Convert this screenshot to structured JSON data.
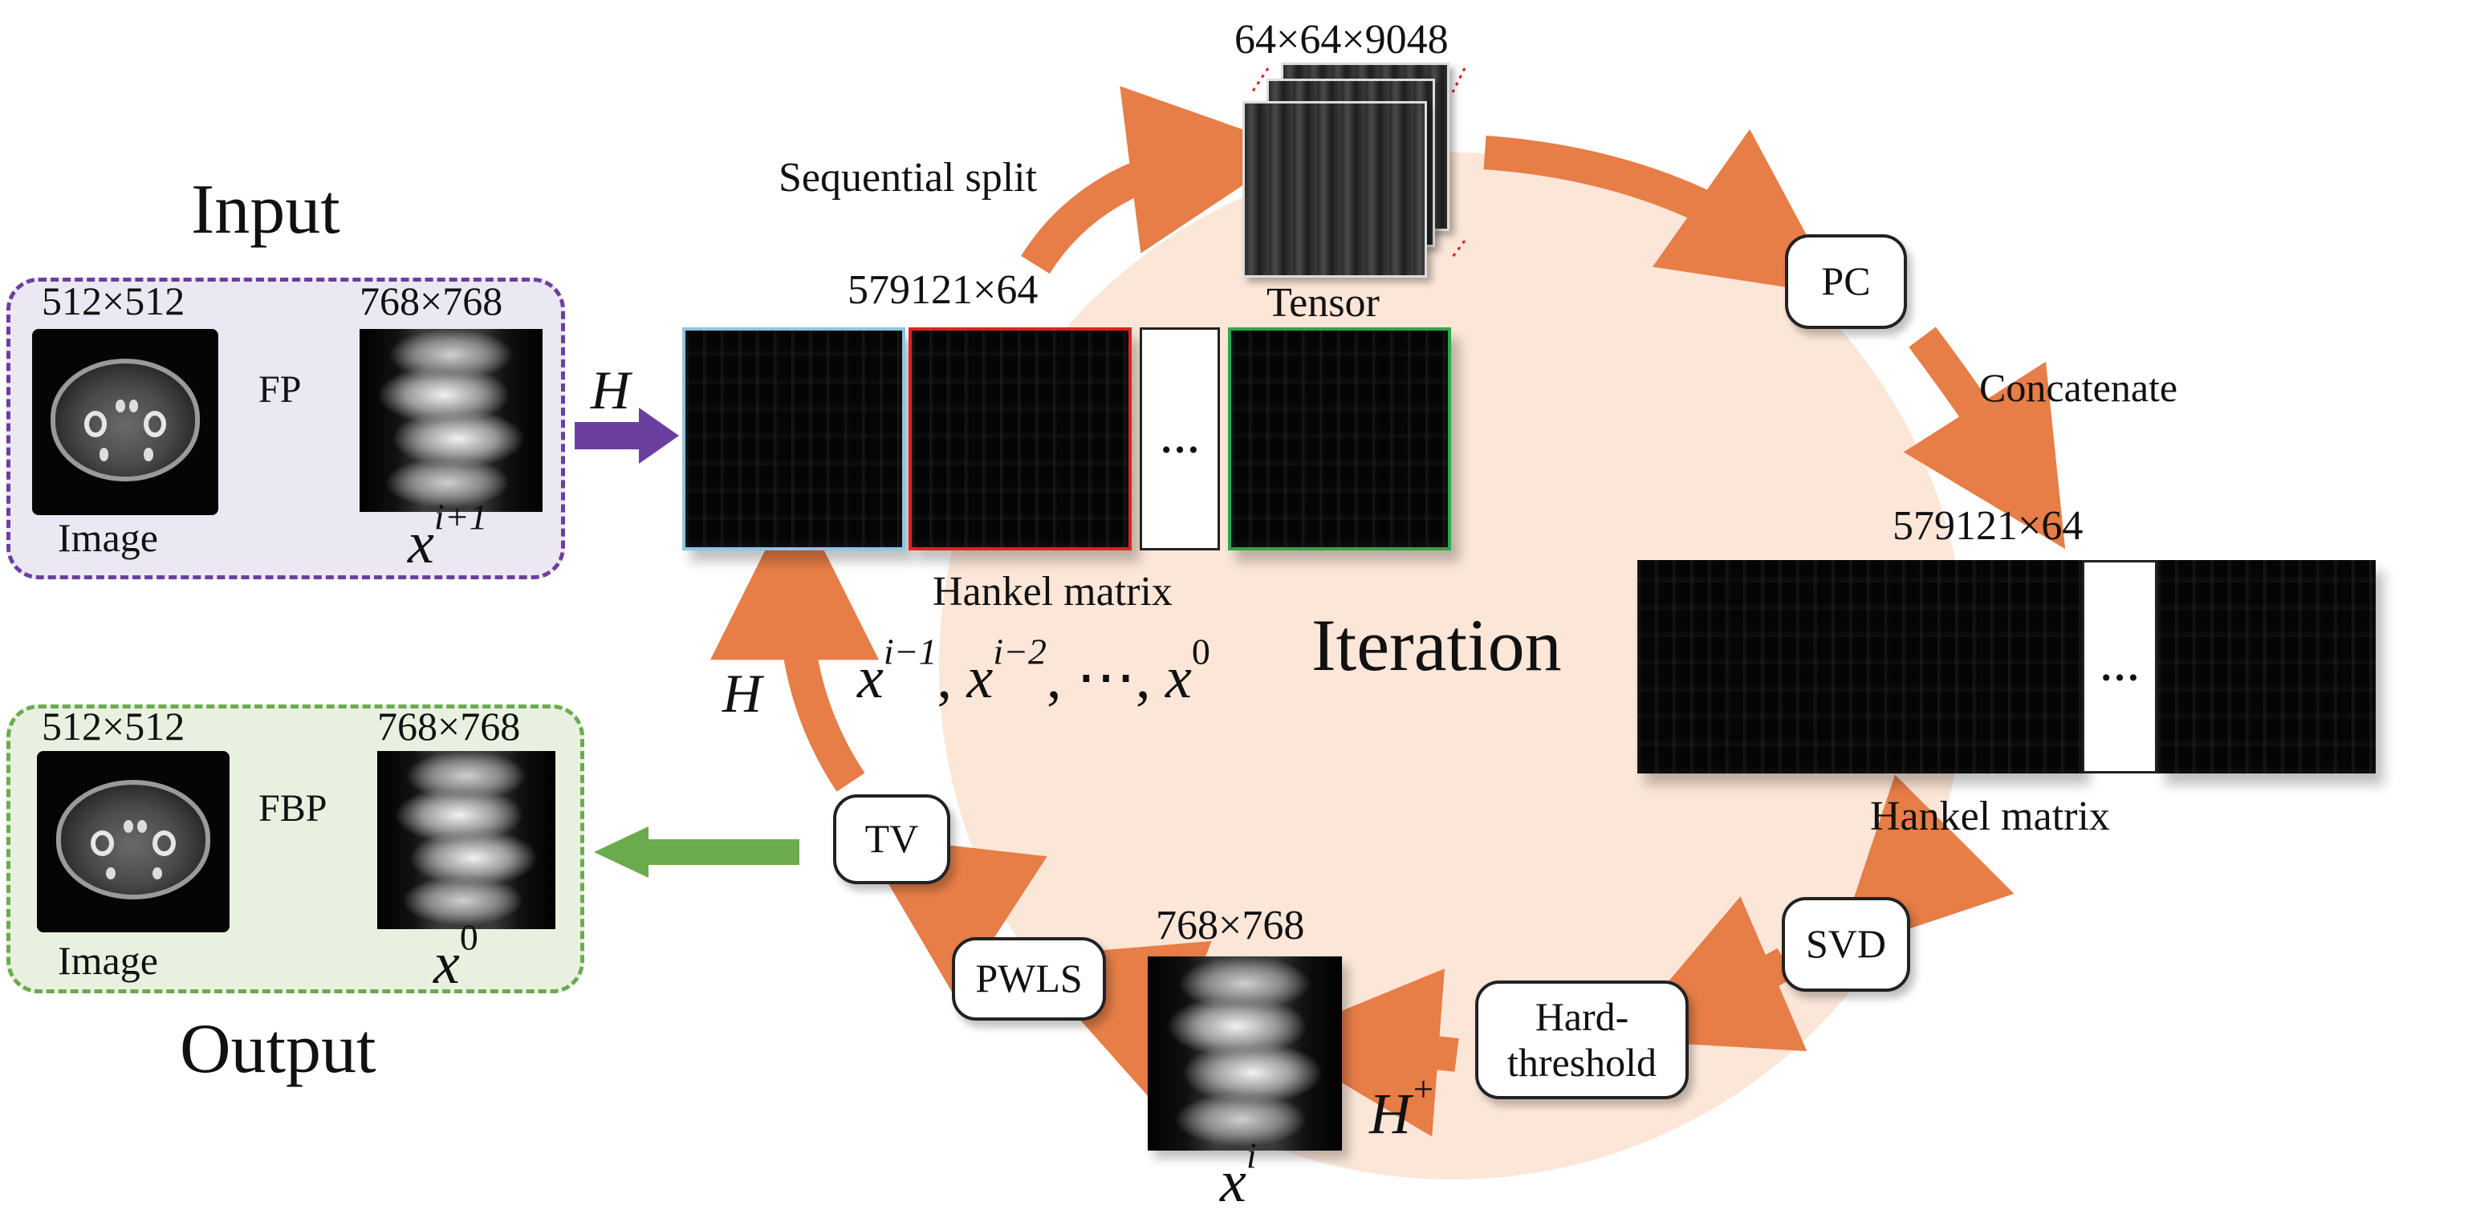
{
  "input": {
    "title": "Input",
    "image_size": "512×512",
    "sino_size": "768×768",
    "fp_label": "FP",
    "image_caption": "Image",
    "sino_var": "x",
    "sino_sup": "i+1"
  },
  "output": {
    "title": "Output",
    "image_size": "512×512",
    "sino_size": "768×768",
    "fbp_label": "FBP",
    "image_caption": "Image",
    "sino_var": "x",
    "sino_sup": "0"
  },
  "operators": {
    "h_top": "H",
    "h_left": "H",
    "h_plus_base": "H",
    "h_plus_sup": "+"
  },
  "tensor": {
    "size": "64×64×9048",
    "caption": "Tensor"
  },
  "labels": {
    "sequential_split": "Sequential split",
    "concatenate": "Concatenate",
    "iteration": "Iteration"
  },
  "hankel_top": {
    "size": "579121×64",
    "caption": "Hankel matrix",
    "ellipsis": "…",
    "border_colors": [
      "#8cc6e4",
      "#e02020",
      "#222222",
      "#2aa84a"
    ]
  },
  "hankel_right": {
    "size": "579121×64",
    "caption": "Hankel matrix",
    "ellipsis": "…"
  },
  "history": {
    "t1": "x",
    "s1": "i−1",
    "sep1": ",",
    "t2": "x",
    "s2": "i−2",
    "sep2": ",",
    "dots": "⋯",
    "sep3": ",",
    "t3": "x",
    "s3": "0"
  },
  "steps": {
    "pc": "PC",
    "svd": "SVD",
    "hard_line1": "Hard-",
    "hard_line2": "threshold",
    "pwls": "PWLS",
    "tv": "TV"
  },
  "current": {
    "size": "768×768",
    "var": "x",
    "sup": "i"
  },
  "colors": {
    "orange": "#e77d47",
    "purple": "#6b3fa0",
    "green": "#6aab4d",
    "circle_fill": "#fbe6d8",
    "input_panel": "#ece8f3",
    "output_panel": "#e8f1e0"
  }
}
